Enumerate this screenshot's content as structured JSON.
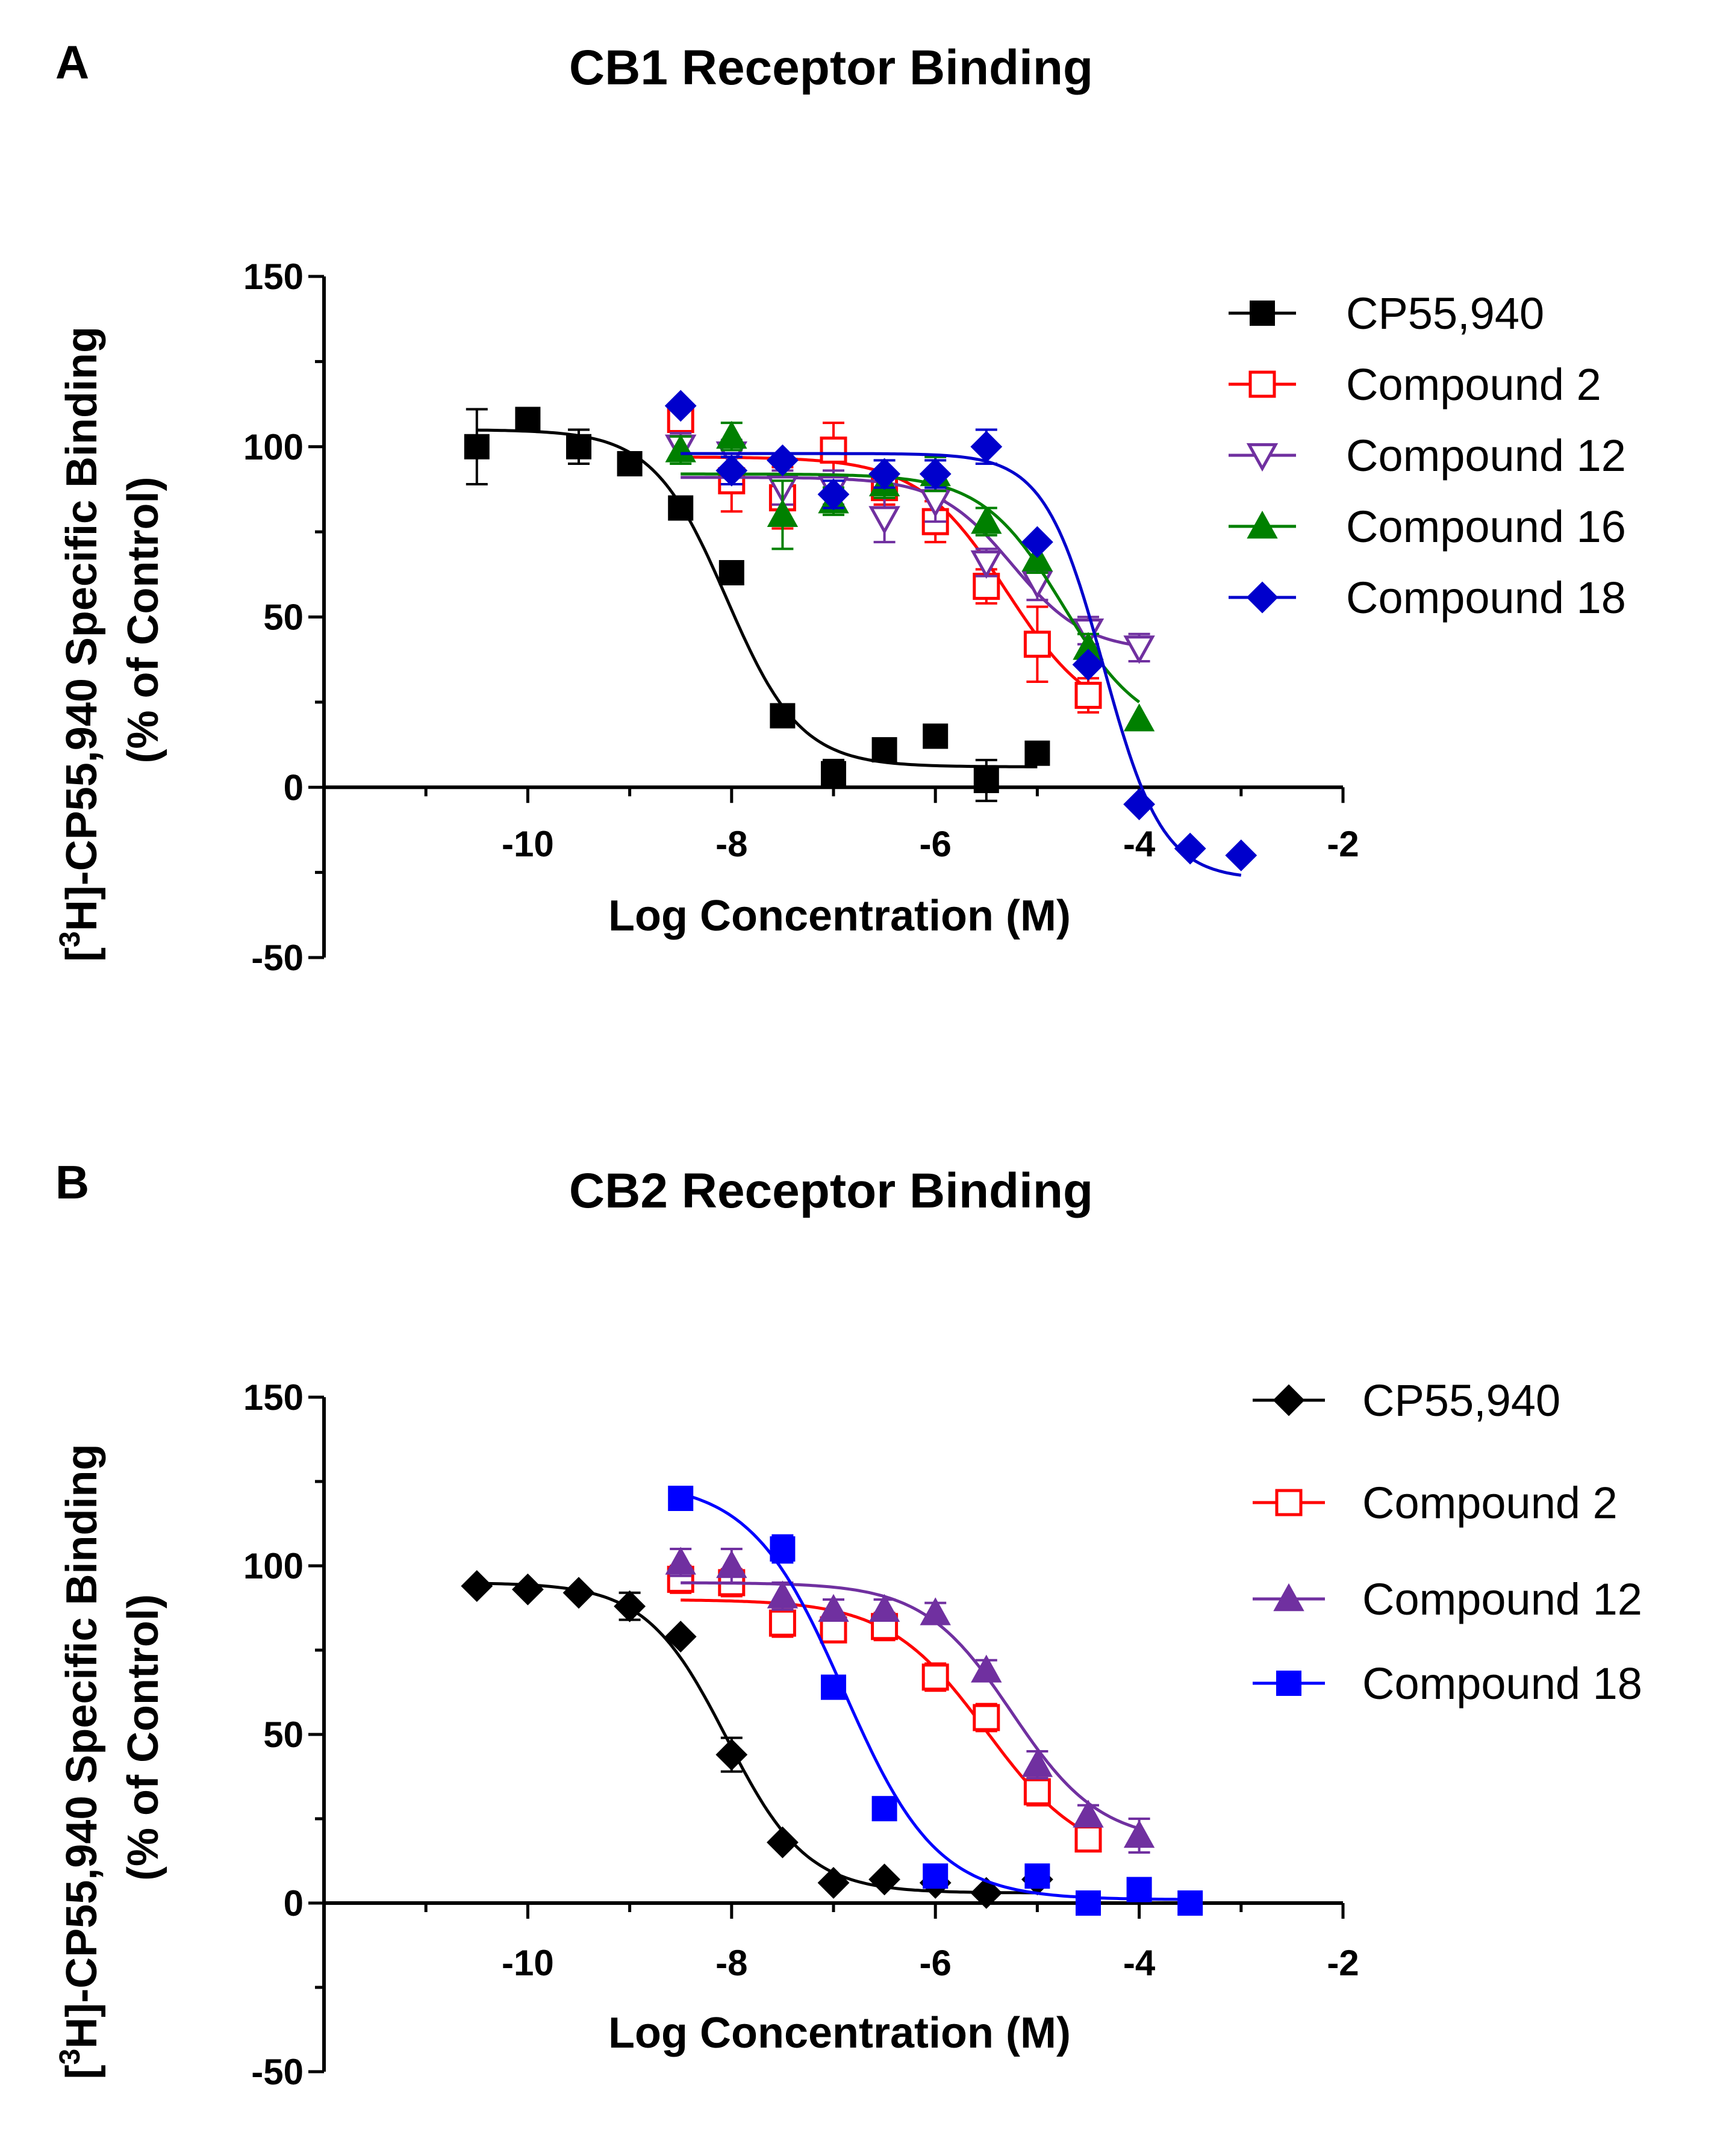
{
  "chart_data": [
    {
      "type": "scatter",
      "panel_label": "A",
      "title": "CB1 Receptor Binding",
      "xlabel": "Log Concentration (M)",
      "ylabel_prefix": "[",
      "ylabel_sup": "3",
      "ylabel_main": "H]-CP55,940 Specific Binding",
      "ylabel_line2": "(% of Control)",
      "xlim": [
        -12,
        -2
      ],
      "ylim": [
        -50,
        150
      ],
      "xticks": [
        -10,
        -8,
        -6,
        -4,
        -2
      ],
      "yticks": [
        -50,
        0,
        50,
        100,
        150
      ],
      "series": [
        {
          "name": "CP55,940",
          "color": "#000000",
          "marker": "square-filled",
          "x": [
            -10.5,
            -10,
            -9.5,
            -9,
            -8.5,
            -8,
            -7.5,
            -7,
            -6.5,
            -6,
            -5.5,
            -5
          ],
          "y": [
            100,
            108,
            100,
            95,
            82,
            63,
            21,
            4,
            11,
            15,
            2,
            10
          ],
          "err": [
            11,
            0,
            5,
            0,
            0,
            0,
            0,
            4,
            0,
            0,
            6,
            0
          ],
          "fit": {
            "top": 105,
            "bottom": 6,
            "logec50": -8.05,
            "hill": 1.2,
            "xmin": -10.5,
            "xmax": -5
          }
        },
        {
          "name": "Compound 2",
          "color": "#ff0000",
          "marker": "square-open",
          "x": [
            -8.5,
            -8,
            -7.5,
            -7,
            -6.5,
            -6,
            -5.5,
            -5,
            -4.5
          ],
          "y": [
            108,
            90,
            85,
            99,
            88,
            78,
            59,
            42,
            27
          ],
          "err": [
            5,
            9,
            9,
            8,
            5,
            6,
            5,
            11,
            5
          ],
          "fit": {
            "top": 97,
            "bottom": 18,
            "logec50": -5.3,
            "hill": 1.0,
            "xmin": -8.5,
            "xmax": -4.5
          }
        },
        {
          "name": "Compound 12",
          "color": "#7030a0",
          "marker": "tri-down-open",
          "x": [
            -8.5,
            -8,
            -7.5,
            -7,
            -6.5,
            -6,
            -5.5,
            -5,
            -4.5,
            -4
          ],
          "y": [
            100,
            98,
            88,
            88,
            79,
            84,
            66,
            60,
            46,
            41
          ],
          "err": [
            4,
            4,
            5,
            5,
            7,
            6,
            4,
            5,
            4,
            4
          ],
          "fit": {
            "top": 91,
            "bottom": 40,
            "logec50": -5.25,
            "hill": 1.2,
            "xmin": -8.5,
            "xmax": -4
          }
        },
        {
          "name": "Compound 16",
          "color": "#008000",
          "marker": "tri-up-filled",
          "x": [
            -8.5,
            -8,
            -7.5,
            -7,
            -6.5,
            -6,
            -5.5,
            -5,
            -4.5,
            -4
          ],
          "y": [
            99,
            103,
            80,
            84,
            89,
            92,
            78,
            67,
            41,
            20
          ],
          "err": [
            4,
            4,
            10,
            4,
            4,
            5,
            4,
            4,
            4,
            0
          ],
          "fit": {
            "top": 92,
            "bottom": 15,
            "logec50": -4.75,
            "hill": 1.1,
            "xmin": -8.5,
            "xmax": -4
          }
        },
        {
          "name": "Compound 18",
          "color": "#0000cc",
          "marker": "diamond-filled",
          "x": [
            -8.5,
            -8,
            -7.5,
            -7,
            -6.5,
            -6,
            -5.5,
            -5,
            -4.5,
            -4,
            -3.5,
            -3
          ],
          "y": [
            112,
            93,
            96,
            86,
            92,
            92,
            100,
            72,
            36,
            -5,
            -18,
            -20
          ],
          "err": [
            0,
            4,
            0,
            4,
            4,
            4,
            5,
            0,
            0,
            0,
            0,
            0
          ],
          "fit": {
            "top": 98,
            "bottom": -27,
            "logec50": -4.35,
            "hill": 1.5,
            "xmin": -8.5,
            "xmax": -3
          }
        }
      ]
    },
    {
      "type": "scatter",
      "panel_label": "B",
      "title": "CB2 Receptor Binding",
      "xlabel": "Log Concentration (M)",
      "ylabel_prefix": "[",
      "ylabel_sup": "3",
      "ylabel_main": "H]-CP55,940 Specific Binding",
      "ylabel_line2": "(% of Control)",
      "xlim": [
        -12,
        -2
      ],
      "ylim": [
        -50,
        150
      ],
      "xticks": [
        -10,
        -8,
        -6,
        -4,
        -2
      ],
      "yticks": [
        -50,
        0,
        50,
        100,
        150
      ],
      "series": [
        {
          "name": "CP55,940",
          "color": "#000000",
          "marker": "diamond-filled",
          "x": [
            -10.5,
            -10,
            -9.5,
            -9,
            -8.5,
            -8,
            -7.5,
            -7,
            -6.5,
            -6,
            -5.5,
            -5
          ],
          "y": [
            94,
            93,
            92,
            88,
            79,
            44,
            18,
            6,
            7,
            6,
            3,
            7
          ],
          "err": [
            0,
            0,
            0,
            4,
            0,
            5,
            0,
            0,
            0,
            0,
            0,
            0
          ],
          "fit": {
            "top": 95,
            "bottom": 3,
            "logec50": -8.05,
            "hill": 1.1,
            "xmin": -10.5,
            "xmax": -5
          }
        },
        {
          "name": "Compound 2",
          "color": "#ff0000",
          "marker": "square-open",
          "x": [
            -8.5,
            -8,
            -7.5,
            -7,
            -6.5,
            -6,
            -5.5,
            -5,
            -4.5
          ],
          "y": [
            96,
            95,
            83,
            81,
            82,
            67,
            55,
            33,
            19
          ],
          "err": [
            4,
            4,
            4,
            3,
            4,
            4,
            4,
            4,
            3
          ],
          "fit": {
            "top": 90,
            "bottom": 12,
            "logec50": -5.5,
            "hill": 0.9,
            "xmin": -8.5,
            "xmax": -4.5
          }
        },
        {
          "name": "Compound 12",
          "color": "#7030a0",
          "marker": "tri-up-filled",
          "x": [
            -8.5,
            -8,
            -7.5,
            -7,
            -6.5,
            -6,
            -5.5,
            -5,
            -4.5,
            -4
          ],
          "y": [
            101,
            100,
            91,
            87,
            87,
            86,
            69,
            41,
            26,
            20
          ],
          "err": [
            4,
            5,
            4,
            3,
            3,
            3,
            3,
            4,
            3,
            5
          ],
          "fit": {
            "top": 95,
            "bottom": 18,
            "logec50": -5.25,
            "hill": 1.0,
            "xmin": -8.5,
            "xmax": -4
          }
        },
        {
          "name": "Compound 18",
          "color": "#0000ff",
          "marker": "square-filled",
          "x": [
            -8.5,
            -7.5,
            -7,
            -6.5,
            -6,
            -5,
            -4.5,
            -4,
            -3.5
          ],
          "y": [
            120,
            105,
            64,
            28,
            8,
            8,
            0,
            4,
            0
          ],
          "err": [
            0,
            4,
            0,
            0,
            0,
            0,
            0,
            0,
            0
          ],
          "fit": {
            "top": 125,
            "bottom": 1,
            "logec50": -6.9,
            "hill": 0.95,
            "xmin": -8.5,
            "xmax": -3.5
          }
        }
      ]
    }
  ]
}
